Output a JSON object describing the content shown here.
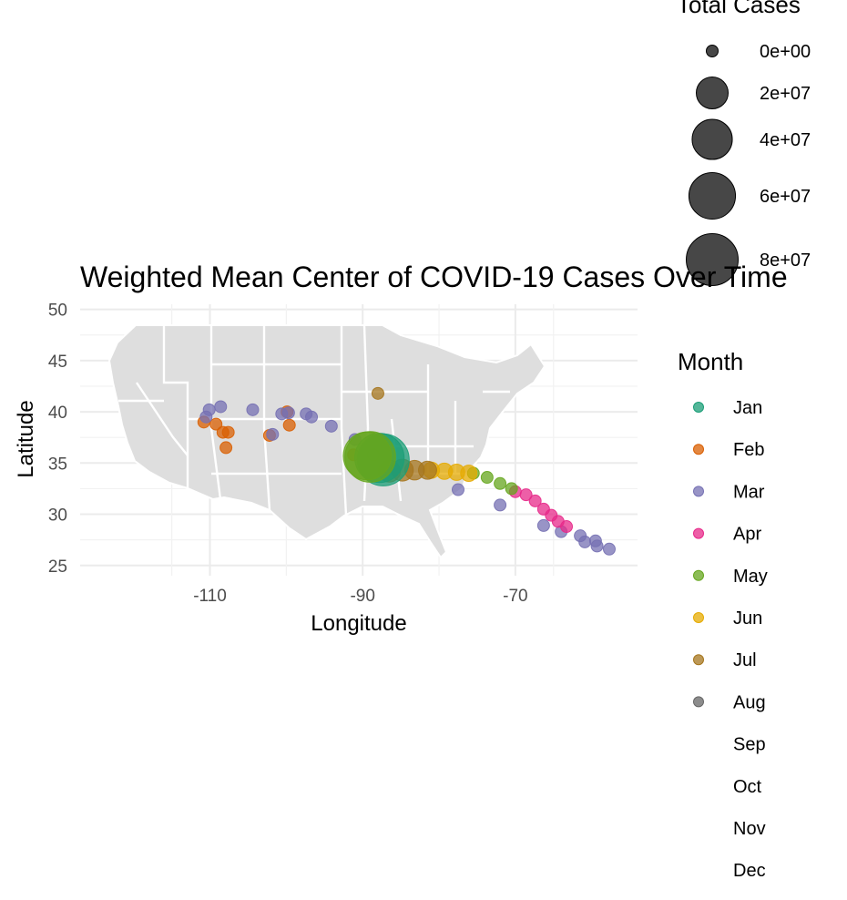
{
  "chart_data": {
    "type": "scatter",
    "title": "Weighted Mean Center of COVID-19 Cases Over Time",
    "xlabel": "Longitude",
    "ylabel": "Latitude",
    "xlim": [
      -127,
      -54
    ],
    "ylim": [
      24,
      50.5
    ],
    "x_ticks": [
      -110,
      -90,
      -70
    ],
    "x_tick_labels": [
      "-110",
      "-90",
      "-70"
    ],
    "y_ticks": [
      25,
      30,
      35,
      40,
      45,
      50
    ],
    "y_tick_labels": [
      "25",
      "30",
      "35",
      "40",
      "45",
      "50"
    ],
    "grid": true,
    "basemap": "US states (gray fill, white borders)",
    "size_legend": {
      "title": "Total Cases",
      "values": [
        0,
        20000000,
        40000000,
        60000000,
        80000000
      ],
      "labels": [
        "0e+00",
        "2e+07",
        "4e+07",
        "6e+07",
        "8e+07"
      ]
    },
    "color_legend": {
      "title": "Month",
      "entries": [
        {
          "label": "Jan",
          "color": "#1B9E77",
          "shown": true
        },
        {
          "label": "Feb",
          "color": "#D95F02",
          "shown": true
        },
        {
          "label": "Mar",
          "color": "#7570B3",
          "shown": true
        },
        {
          "label": "Apr",
          "color": "#E7298A",
          "shown": true
        },
        {
          "label": "May",
          "color": "#66A61E",
          "shown": true
        },
        {
          "label": "Jun",
          "color": "#E6AB02",
          "shown": true
        },
        {
          "label": "Jul",
          "color": "#A6761D",
          "shown": true
        },
        {
          "label": "Aug",
          "color": "#666666",
          "shown": true
        },
        {
          "label": "Sep",
          "color": "#ffffff",
          "shown": false
        },
        {
          "label": "Oct",
          "color": "#ffffff",
          "shown": false
        },
        {
          "label": "Nov",
          "color": "#ffffff",
          "shown": false
        },
        {
          "label": "Dec",
          "color": "#ffffff",
          "shown": false
        }
      ]
    },
    "series": [
      {
        "name": "Feb",
        "points": [
          [
            -110.8,
            39.0
          ],
          [
            -109.2,
            38.8
          ],
          [
            -108.3,
            38.0
          ],
          [
            -107.6,
            38.0
          ],
          [
            -107.9,
            36.5
          ],
          [
            -102.2,
            37.7
          ],
          [
            -99.9,
            40.0
          ],
          [
            -99.6,
            38.7
          ],
          [
            -91.2,
            35.8
          ]
        ],
        "sizes": [
          0,
          0,
          0,
          0,
          0,
          0,
          0,
          0,
          0
        ]
      },
      {
        "name": "Mar",
        "points": [
          [
            -110.5,
            39.5
          ],
          [
            -110.1,
            40.2
          ],
          [
            -108.6,
            40.5
          ],
          [
            -104.4,
            40.2
          ],
          [
            -101.8,
            37.8
          ],
          [
            -100.6,
            39.8
          ],
          [
            -99.7,
            39.9
          ],
          [
            -97.4,
            39.8
          ],
          [
            -96.7,
            39.5
          ],
          [
            -94.1,
            38.6
          ],
          [
            -91.0,
            37.3
          ],
          [
            -77.5,
            32.4
          ],
          [
            -72.0,
            30.9
          ],
          [
            -66.3,
            28.9
          ],
          [
            -64.0,
            28.3
          ],
          [
            -61.5,
            27.9
          ],
          [
            -60.9,
            27.3
          ],
          [
            -59.5,
            27.4
          ],
          [
            -59.3,
            26.9
          ],
          [
            -57.7,
            26.6
          ]
        ],
        "sizes": [
          0,
          0,
          0,
          0,
          0,
          0,
          0,
          0,
          0,
          0,
          0,
          0,
          0,
          0,
          0,
          0,
          0,
          0,
          0,
          0
        ]
      },
      {
        "name": "Apr",
        "points": [
          [
            -70.0,
            32.2
          ],
          [
            -68.6,
            31.9
          ],
          [
            -67.4,
            31.3
          ],
          [
            -66.3,
            30.5
          ],
          [
            -65.3,
            29.9
          ],
          [
            -64.4,
            29.3
          ],
          [
            -63.3,
            28.8
          ]
        ],
        "sizes": [
          0,
          0,
          0,
          0,
          0,
          0,
          0
        ]
      },
      {
        "name": "May",
        "points": [
          [
            -75.5,
            34.0
          ],
          [
            -73.7,
            33.6
          ],
          [
            -72.0,
            33.0
          ],
          [
            -70.5,
            32.5
          ]
        ],
        "sizes": [
          0,
          0,
          0,
          0
        ]
      },
      {
        "name": "Jun",
        "points": [
          [
            -81.0,
            34.3
          ],
          [
            -79.3,
            34.2
          ],
          [
            -77.7,
            34.1
          ],
          [
            -76.1,
            34.0
          ]
        ],
        "sizes": [
          1000000,
          1000000,
          1000000,
          1000000
        ]
      },
      {
        "name": "Jul",
        "points": [
          [
            -88.0,
            41.8
          ],
          [
            -86.5,
            34.2
          ],
          [
            -84.8,
            34.3
          ],
          [
            -83.2,
            34.3
          ],
          [
            -81.5,
            34.3
          ]
        ],
        "sizes": [
          0,
          5000000,
          5000000,
          3000000,
          2000000
        ]
      },
      {
        "name": "Aug",
        "points": [
          [
            -88.6,
            35.8
          ]
        ],
        "sizes": [
          0
        ]
      },
      {
        "name": "Jan",
        "points": [
          [
            -87.8,
            35.5
          ],
          [
            -87.3,
            35.3
          ]
        ],
        "sizes": [
          70000000,
          80000000
        ]
      },
      {
        "name": "May",
        "points": [
          [
            -89.4,
            35.7
          ],
          [
            -89.0,
            35.6
          ]
        ],
        "sizes": [
          65000000,
          75000000
        ]
      }
    ]
  }
}
